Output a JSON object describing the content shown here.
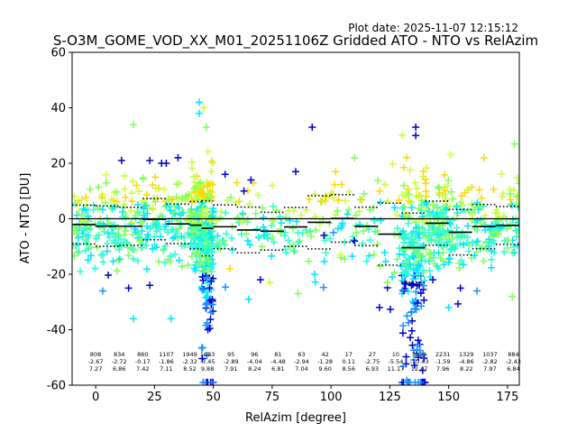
{
  "plot_date": "Plot date: 2025-11-07 12:15:12",
  "chart_data": {
    "type": "scatter",
    "title": "S-O3M_GOME_VOD_XX_M01_20251106Z Gridded ATO - NTO vs RelAzim",
    "xlabel": "RelAzim [degree]",
    "ylabel": "ATO - NTO [DU]",
    "xlim": [
      -10,
      180
    ],
    "ylim": [
      -60,
      60
    ],
    "xticks": [
      0,
      25,
      50,
      75,
      100,
      125,
      150,
      175
    ],
    "yticks": [
      -60,
      -40,
      -20,
      0,
      20,
      40,
      60
    ],
    "zero_line": 0,
    "colors": {
      "low": "#0000cd",
      "mid_low": "#1e90ff",
      "cyan": "#00e5ff",
      "aqua": "#2effd0",
      "green": "#7fff5a",
      "yellowgreen": "#c8ff3c",
      "yellow": "#ffd700",
      "axis": "#000000"
    },
    "bins": [
      {
        "center": -5,
        "count": "",
        "mean": "",
        "std": ""
      },
      {
        "center": 0,
        "count": "808",
        "mean": "-2.67",
        "std": "7.27"
      },
      {
        "center": 10,
        "count": "834",
        "mean": "-2.72",
        "std": "6.86"
      },
      {
        "center": 20,
        "count": "860",
        "mean": "-0.17",
        "std": "7.42"
      },
      {
        "center": 30,
        "count": "1107",
        "mean": "-1.86",
        "std": "7.11"
      },
      {
        "center": 40,
        "count": "1949",
        "mean": "-2.32",
        "std": "8.52"
      },
      {
        "center": 47.5,
        "count": "1683",
        "mean": "-3.45",
        "std": "9.88"
      },
      {
        "center": 57.5,
        "count": "95",
        "mean": "-2.89",
        "std": "7.91"
      },
      {
        "center": 67.5,
        "count": "96",
        "mean": "-4.04",
        "std": "8.24"
      },
      {
        "center": 77.5,
        "count": "81",
        "mean": "-4.48",
        "std": "6.81"
      },
      {
        "center": 87.5,
        "count": "63",
        "mean": "-2.94",
        "std": "7.04"
      },
      {
        "center": 97.5,
        "count": "42",
        "mean": "-1.28",
        "std": "9.60"
      },
      {
        "center": 107.5,
        "count": "17",
        "mean": "0.11",
        "std": "8.56"
      },
      {
        "center": 117.5,
        "count": "27",
        "mean": "-2.75",
        "std": "6.93"
      },
      {
        "center": 127.5,
        "count": "10",
        "mean": "-5.54",
        "std": "11.17"
      },
      {
        "center": 137.5,
        "count": "3826",
        "mean": "-10.43",
        "std": "12.47"
      },
      {
        "center": 147.5,
        "count": "2231",
        "mean": "-1.59",
        "std": "7.96"
      },
      {
        "center": 157.5,
        "count": "1329",
        "mean": "-4.86",
        "std": "8.22"
      },
      {
        "center": 167.5,
        "count": "1037",
        "mean": "-2.82",
        "std": "7.97"
      },
      {
        "center": 177.5,
        "count": "884",
        "mean": "-2.43",
        "std": "6.84"
      }
    ],
    "mean_segments": [
      {
        "x0": -10,
        "x1": 0,
        "mean": -2.1,
        "std": 7.0
      },
      {
        "x0": 0,
        "x1": 10,
        "mean": -2.67,
        "std": 7.27
      },
      {
        "x0": 10,
        "x1": 20,
        "mean": -2.72,
        "std": 6.86
      },
      {
        "x0": 20,
        "x1": 30,
        "mean": -0.17,
        "std": 7.42
      },
      {
        "x0": 30,
        "x1": 40,
        "mean": -1.86,
        "std": 7.11
      },
      {
        "x0": 40,
        "x1": 45,
        "mean": -2.32,
        "std": 8.52
      },
      {
        "x0": 45,
        "x1": 50,
        "mean": -3.45,
        "std": 9.88
      },
      {
        "x0": 50,
        "x1": 60,
        "mean": -2.89,
        "std": 7.91
      },
      {
        "x0": 60,
        "x1": 70,
        "mean": -4.04,
        "std": 8.24
      },
      {
        "x0": 70,
        "x1": 80,
        "mean": -4.48,
        "std": 6.81
      },
      {
        "x0": 80,
        "x1": 90,
        "mean": -2.94,
        "std": 7.04
      },
      {
        "x0": 90,
        "x1": 100,
        "mean": -1.28,
        "std": 9.6
      },
      {
        "x0": 100,
        "x1": 110,
        "mean": 0.11,
        "std": 8.56
      },
      {
        "x0": 110,
        "x1": 120,
        "mean": -2.75,
        "std": 6.93
      },
      {
        "x0": 120,
        "x1": 130,
        "mean": -5.54,
        "std": 11.17
      },
      {
        "x0": 130,
        "x1": 140,
        "mean": -10.43,
        "std": 12.47
      },
      {
        "x0": 140,
        "x1": 150,
        "mean": -1.59,
        "std": 7.96
      },
      {
        "x0": 150,
        "x1": 160,
        "mean": -4.86,
        "std": 8.22
      },
      {
        "x0": 160,
        "x1": 170,
        "mean": -2.82,
        "std": 7.97
      },
      {
        "x0": 170,
        "x1": 180,
        "mean": -2.43,
        "std": 6.84
      }
    ],
    "outliers": [
      {
        "x": 44,
        "y": 42,
        "c": "cyan"
      },
      {
        "x": 44,
        "y": 38,
        "c": "cyan"
      },
      {
        "x": 46,
        "y": 40,
        "c": "yellowgreen"
      },
      {
        "x": 47,
        "y": 33,
        "c": "green"
      },
      {
        "x": 16,
        "y": 34,
        "c": "green"
      },
      {
        "x": 92,
        "y": 33,
        "c": "low"
      },
      {
        "x": 136,
        "y": 33,
        "c": "low"
      },
      {
        "x": 136,
        "y": 30,
        "c": "low"
      },
      {
        "x": 55,
        "y": 16,
        "c": "low"
      },
      {
        "x": 85,
        "y": 17,
        "c": "low"
      },
      {
        "x": 102,
        "y": 17,
        "c": "yellow"
      },
      {
        "x": 110,
        "y": 22,
        "c": "green"
      },
      {
        "x": 178,
        "y": 27,
        "c": "green"
      },
      {
        "x": 11,
        "y": 21,
        "c": "low"
      },
      {
        "x": 23,
        "y": 21,
        "c": "low"
      },
      {
        "x": 28,
        "y": 20,
        "c": "low"
      },
      {
        "x": 30,
        "y": 20,
        "c": "low"
      },
      {
        "x": 35,
        "y": 22,
        "c": "low"
      },
      {
        "x": 165,
        "y": 22,
        "c": "yellow"
      },
      {
        "x": 16,
        "y": -36,
        "c": "cyan"
      },
      {
        "x": 32,
        "y": -36,
        "c": "cyan"
      },
      {
        "x": 14,
        "y": -25,
        "c": "low"
      },
      {
        "x": 23,
        "y": -24,
        "c": "low"
      },
      {
        "x": 3,
        "y": -26,
        "c": "mid_low"
      },
      {
        "x": 65,
        "y": -29,
        "c": "cyan"
      },
      {
        "x": 86,
        "y": -27,
        "c": "green"
      },
      {
        "x": 93,
        "y": -20,
        "c": "cyan"
      },
      {
        "x": 150,
        "y": -32,
        "c": "cyan"
      },
      {
        "x": 155,
        "y": -25,
        "c": "low"
      },
      {
        "x": 162,
        "y": -26,
        "c": "mid_low"
      },
      {
        "x": 177,
        "y": -28,
        "c": "green"
      },
      {
        "x": 57,
        "y": -18,
        "c": "yellow"
      },
      {
        "x": 74,
        "y": -23,
        "c": "yellowgreen"
      },
      {
        "x": 70,
        "y": -22,
        "c": "low"
      },
      {
        "x": 124,
        "y": -23,
        "c": "green"
      },
      {
        "x": 126,
        "y": -21,
        "c": "cyan"
      },
      {
        "x": 104,
        "y": -13,
        "c": "yellowgreen"
      },
      {
        "x": 110,
        "y": -8,
        "c": "low"
      },
      {
        "x": 97,
        "y": -6,
        "c": "low"
      },
      {
        "x": 101,
        "y": -5,
        "c": "mid_low"
      },
      {
        "x": 114,
        "y": 9,
        "c": "green"
      },
      {
        "x": 98,
        "y": 8,
        "c": "yellow"
      },
      {
        "x": 60,
        "y": 13,
        "c": "yellow"
      },
      {
        "x": 63,
        "y": 10,
        "c": "low"
      },
      {
        "x": 66,
        "y": 14,
        "c": "low"
      },
      {
        "x": 75,
        "y": 12,
        "c": "yellowgreen"
      },
      {
        "x": 121,
        "y": 6,
        "c": "cyan"
      },
      {
        "x": 127,
        "y": 4,
        "c": "cyan"
      },
      {
        "x": 118,
        "y": 4,
        "c": "green"
      },
      {
        "x": 131,
        "y": 12,
        "c": "green"
      }
    ]
  }
}
